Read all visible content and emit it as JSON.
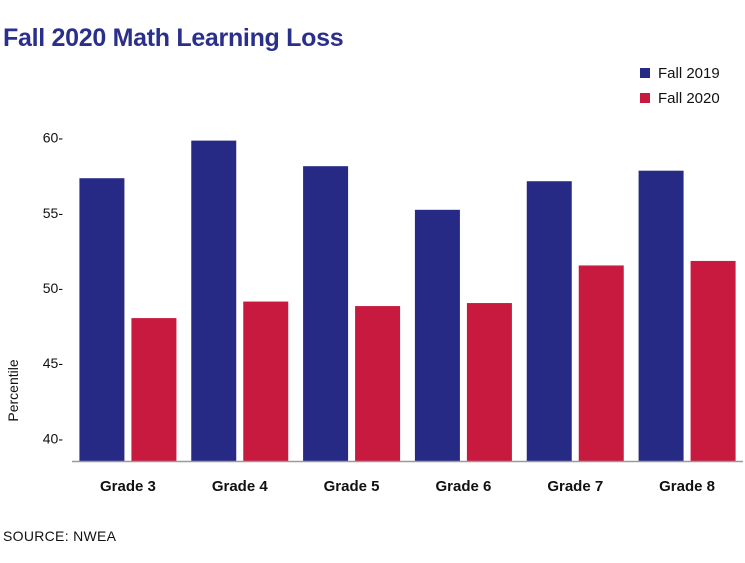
{
  "title": "Fall 2020 Math Learning Loss",
  "source": "SOURCE: NWEA",
  "legend": [
    {
      "label": "Fall 2019",
      "color": "#262a85"
    },
    {
      "label": "Fall 2020",
      "color": "#c8193e"
    }
  ],
  "chart_data": {
    "type": "bar",
    "title": "Fall 2020 Math Learning Loss",
    "ylabel": "Percentile",
    "xlabel": "",
    "categories": [
      "Grade 3",
      "Grade 4",
      "Grade 5",
      "Grade 6",
      "Grade 7",
      "Grade 8"
    ],
    "series": [
      {
        "name": "Fall 2019",
        "color": "#262a85",
        "values": [
          57.3,
          59.8,
          58.1,
          55.2,
          57.1,
          57.8
        ]
      },
      {
        "name": "Fall 2020",
        "color": "#c8193e",
        "values": [
          48.0,
          49.1,
          48.8,
          49.0,
          51.5,
          51.8
        ]
      }
    ],
    "yticks": [
      "40-",
      "45-",
      "50-",
      "55-",
      "60-"
    ],
    "ytick_values": [
      40,
      45,
      50,
      55,
      60
    ],
    "ylim": [
      38.5,
      62.5
    ],
    "grid": false,
    "legend_position": "top-right"
  }
}
